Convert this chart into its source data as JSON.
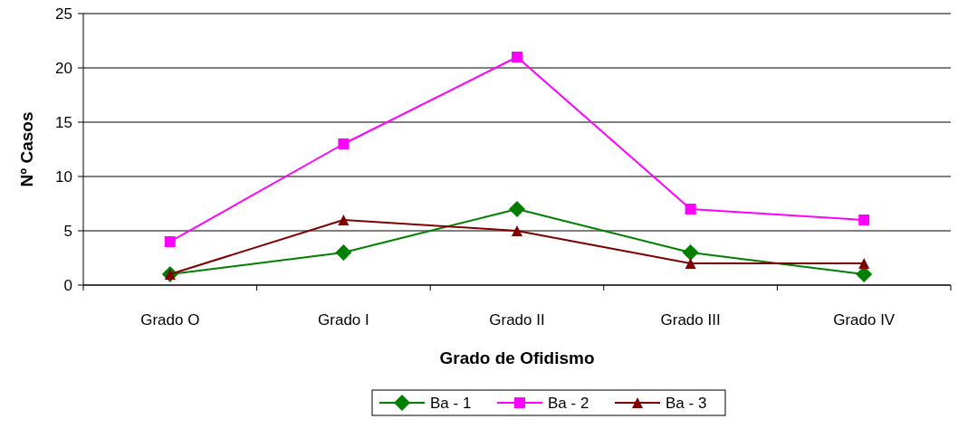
{
  "chart_data": {
    "type": "line",
    "xlabel": "Grado de Ofidismo",
    "ylabel": "Nº Casos",
    "categories": [
      "Grado O",
      "Grado I",
      "Grado II",
      "Grado III",
      "Grado IV"
    ],
    "series": [
      {
        "name": "Ba - 1",
        "color": "#008000",
        "marker": "diamond",
        "values": [
          1,
          3,
          7,
          3,
          1
        ]
      },
      {
        "name": "Ba - 2",
        "color": "#ff00ff",
        "marker": "square",
        "values": [
          4,
          13,
          21,
          7,
          6
        ]
      },
      {
        "name": "Ba - 3",
        "color": "#800000",
        "marker": "triangle",
        "values": [
          1,
          6,
          5,
          2,
          2
        ]
      }
    ],
    "ylim": [
      0,
      25
    ],
    "yticks": [
      0,
      5,
      10,
      15,
      20,
      25
    ],
    "grid": "y",
    "legend": "bottom"
  }
}
